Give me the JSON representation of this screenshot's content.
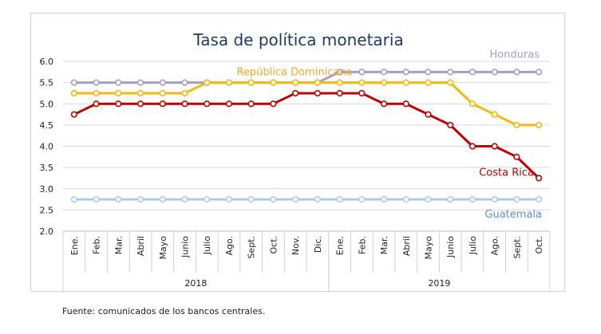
{
  "chart_data": {
    "type": "line",
    "title": "Tasa de política monetaria",
    "xlabel": "",
    "ylabel": "",
    "ylim": [
      2.0,
      6.0
    ],
    "yticks": [
      "2.0",
      "2.5",
      "3.0",
      "3.5",
      "4.0",
      "4.5",
      "5.0",
      "5.5",
      "6.0"
    ],
    "grid": true,
    "categories": [
      "Ene.",
      "Feb.",
      "Mar.",
      "Abril",
      "Mayo",
      "Junio",
      "Julio",
      "Ago.",
      "Sept.",
      "Oct.",
      "Nov.",
      "Dic.",
      "Ene.",
      "Feb.",
      "Mar.",
      "Abril",
      "Mayo",
      "Junio",
      "Julio",
      "Ago.",
      "Sept.",
      "Oct."
    ],
    "groups": [
      {
        "label": "2018",
        "count": 12
      },
      {
        "label": "2019",
        "count": 10
      }
    ],
    "series": [
      {
        "name": "Honduras",
        "color": "#a99bc9",
        "values": [
          5.5,
          5.5,
          5.5,
          5.5,
          5.5,
          5.5,
          5.5,
          5.5,
          5.5,
          5.5,
          5.5,
          5.5,
          5.75,
          5.75,
          5.75,
          5.75,
          5.75,
          5.75,
          5.75,
          5.75,
          5.75,
          5.75
        ]
      },
      {
        "name": "República Dominicana",
        "color": "#f5b80e",
        "values": [
          5.25,
          5.25,
          5.25,
          5.25,
          5.25,
          5.25,
          5.5,
          5.5,
          5.5,
          5.5,
          5.5,
          5.5,
          5.5,
          5.5,
          5.5,
          5.5,
          5.5,
          5.5,
          5.0,
          4.75,
          4.5,
          4.5
        ]
      },
      {
        "name": "Costa Rica",
        "color": "#c00000",
        "values": [
          4.75,
          5.0,
          5.0,
          5.0,
          5.0,
          5.0,
          5.0,
          5.0,
          5.0,
          5.0,
          5.25,
          5.25,
          5.25,
          5.25,
          5.0,
          5.0,
          4.75,
          4.5,
          4.0,
          4.0,
          3.75,
          3.25
        ]
      },
      {
        "name": "Guatemala",
        "color": "#aecbea",
        "values": [
          2.75,
          2.75,
          2.75,
          2.75,
          2.75,
          2.75,
          2.75,
          2.75,
          2.75,
          2.75,
          2.75,
          2.75,
          2.75,
          2.75,
          2.75,
          2.75,
          2.75,
          2.75,
          2.75,
          2.75,
          2.75,
          2.75
        ]
      }
    ],
    "series_label_colors": {
      "Honduras": "#a99bc9",
      "República Dominicana": "#f5a623",
      "Costa Rica": "#c00000",
      "Guatemala": "#5b8fd1"
    },
    "title_color": "#1f3b63",
    "gridline_color": "#d9d9d9"
  },
  "source_note": "Fuente: comunicados de los bancos centrales."
}
